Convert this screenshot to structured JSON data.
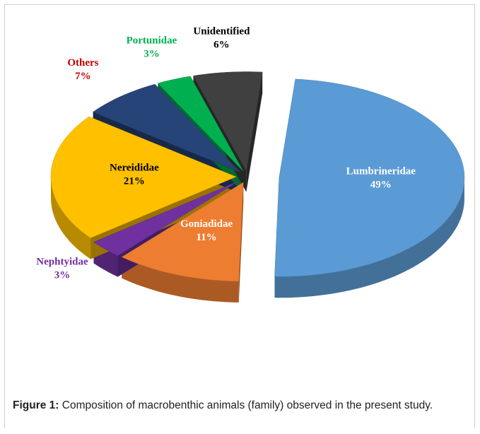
{
  "chart_data": {
    "type": "pie3d",
    "categories": [
      "Lumbrineridae",
      "Goniadidae",
      "Nephtyidae",
      "Nereididae",
      "Others",
      "Portunidae",
      "Unidentified"
    ],
    "values": [
      49,
      11,
      3,
      21,
      7,
      3,
      6
    ],
    "value_labels": [
      "49%",
      "11%",
      "3%",
      "21%",
      "7%",
      "3%",
      "6%"
    ],
    "colors": [
      "#5b9bd5",
      "#ed7d31",
      "#7030a0",
      "#ffc000",
      "#264478",
      "#00b050",
      "#404040"
    ],
    "label_colors": [
      "#ffffff",
      "#ffffff",
      "#7030a0",
      "#000000",
      "#c00000",
      "#00b050",
      "#000000"
    ]
  },
  "caption": {
    "label": "Figure 1:",
    "text": "Composition of macrobenthic animals (family) observed in the present study."
  }
}
